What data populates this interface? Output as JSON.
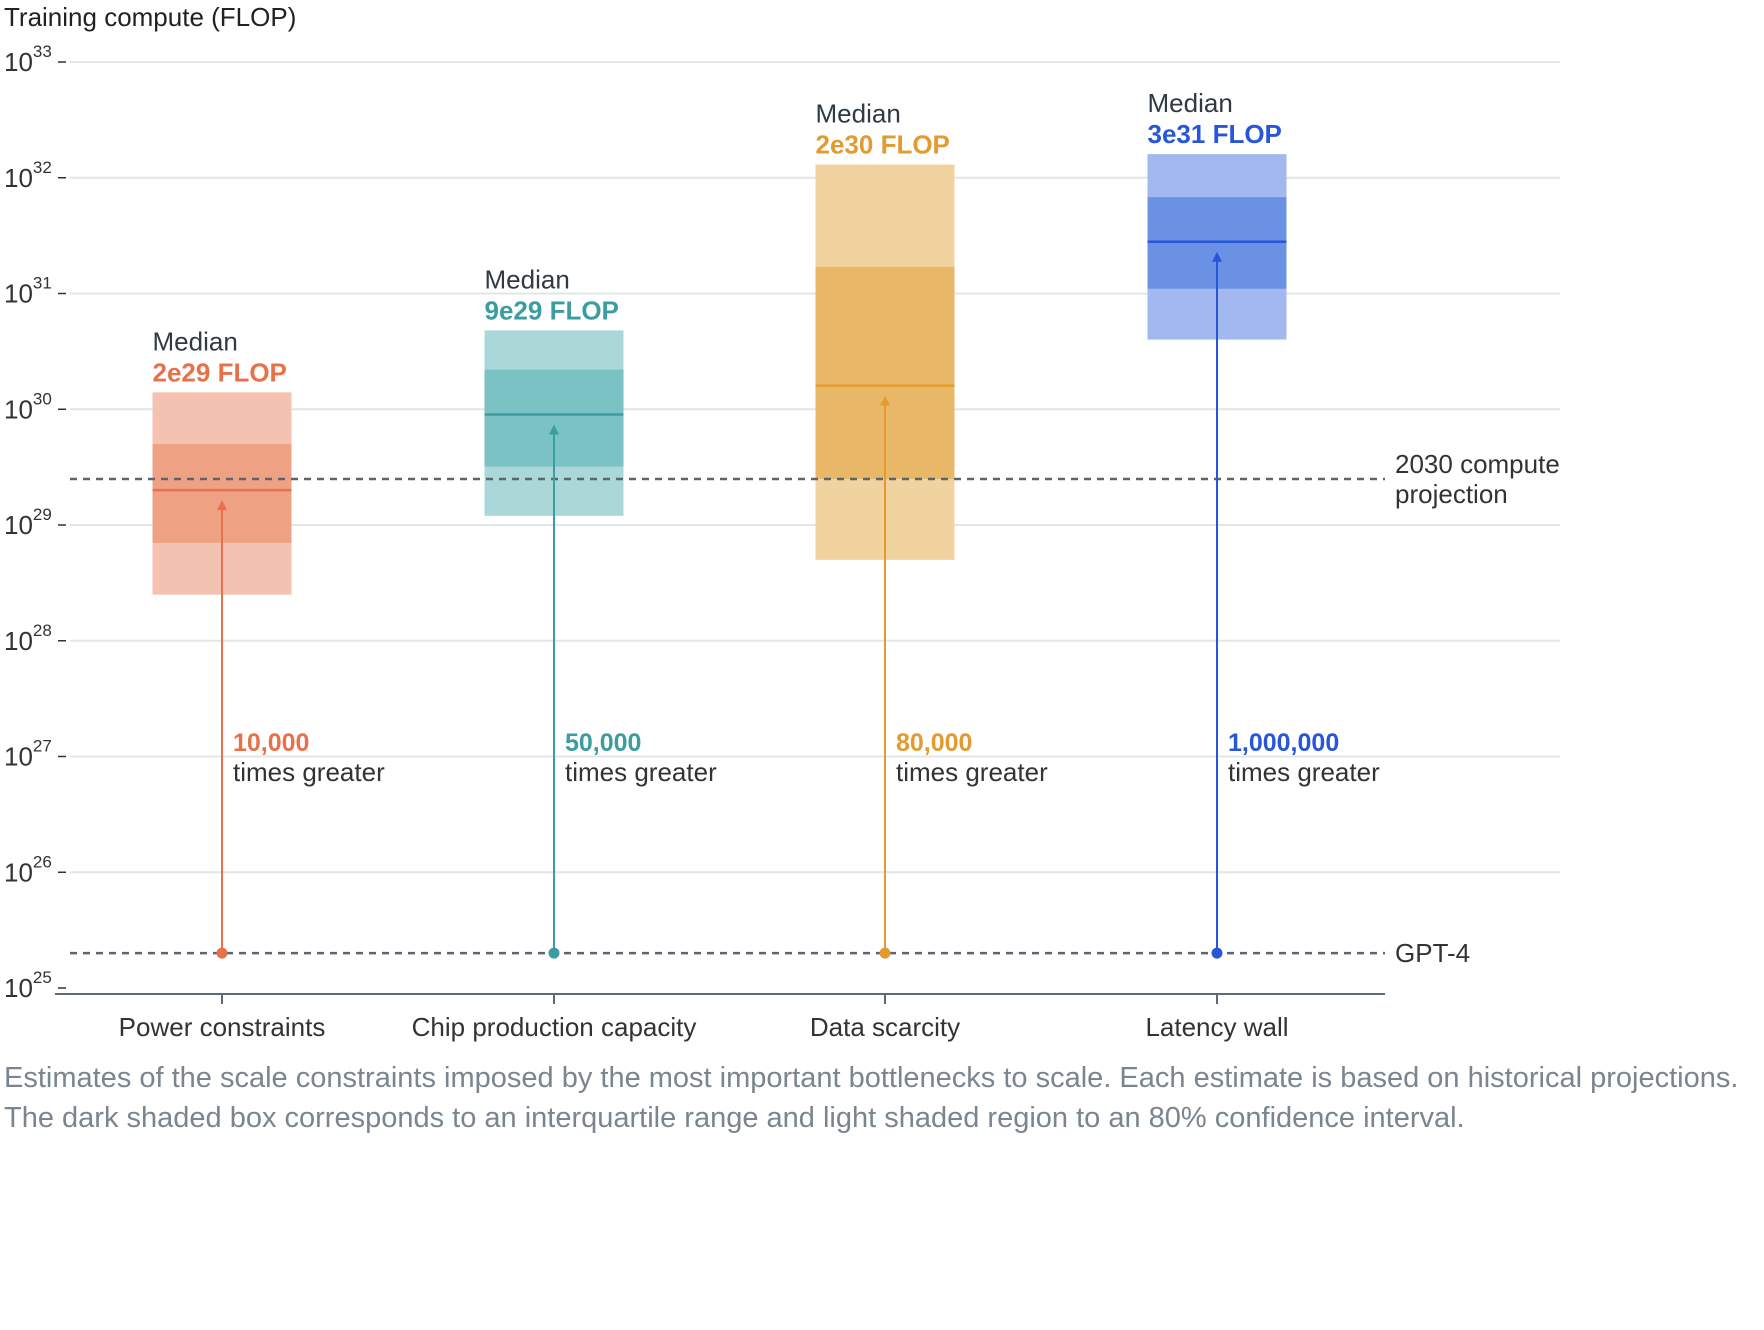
{
  "chart_data": {
    "type": "box",
    "ylabel": "Training compute (FLOP)",
    "yscale": "log",
    "ylim": [
      1e+25,
      1e+33
    ],
    "yticks": [
      {
        "base": "10",
        "exp": "33"
      },
      {
        "base": "10",
        "exp": "32"
      },
      {
        "base": "10",
        "exp": "31"
      },
      {
        "base": "10",
        "exp": "30"
      },
      {
        "base": "10",
        "exp": "29"
      },
      {
        "base": "10",
        "exp": "28"
      },
      {
        "base": "10",
        "exp": "27"
      },
      {
        "base": "10",
        "exp": "26"
      },
      {
        "base": "10",
        "exp": "25"
      }
    ],
    "grid": true,
    "categories": [
      "Power constraints",
      "Chip production capacity",
      "Data scarcity",
      "Latency wall"
    ],
    "series": [
      {
        "category": "Power constraints",
        "color": "#e8714a",
        "light_color": "#f4c2b1",
        "dark_color": "#efa184",
        "median": 2e+29,
        "iqr": [
          7e+28,
          5e+29
        ],
        "ci80": [
          2.5e+28,
          1.4e+30
        ],
        "median_label": "Median",
        "median_value_label": "2e29 FLOP",
        "multiplier_value": "10,000",
        "multiplier_text": "times greater"
      },
      {
        "category": "Chip production capacity",
        "color": "#3c9da0",
        "light_color": "#aad8d9",
        "dark_color": "#7ac2c3",
        "median": 9e+29,
        "iqr": [
          3.2e+29,
          2.2e+30
        ],
        "ci80": [
          1.2e+29,
          4.8e+30
        ],
        "median_label": "Median",
        "median_value_label": "9e29 FLOP",
        "multiplier_value": "50,000",
        "multiplier_text": "times greater"
      },
      {
        "category": "Data scarcity",
        "color": "#e39a2e",
        "light_color": "#f1d3a0",
        "dark_color": "#e8b868",
        "median": 1.6e+30,
        "iqr": [
          2.5e+29,
          1.7e+31
        ],
        "ci80": [
          5e+28,
          1.3e+32
        ],
        "median_label": "Median",
        "median_value_label": "2e30 FLOP",
        "multiplier_value": "80,000",
        "multiplier_text": "times greater"
      },
      {
        "category": "Latency wall",
        "color": "#2757d8",
        "light_color": "#a2b8ee",
        "dark_color": "#6a91e4",
        "median": 2.8e+31,
        "iqr": [
          1.1e+31,
          6.8e+31
        ],
        "ci80": [
          4e+30,
          1.6e+32
        ],
        "median_label": "Median",
        "median_value_label": "3e31 FLOP",
        "multiplier_value": "1,000,000",
        "multiplier_text": "times greater"
      }
    ],
    "reference_lines": [
      {
        "label_lines": [
          "2030 compute",
          "projection"
        ],
        "value": 2.5e+29,
        "style": "dashed"
      },
      {
        "label_lines": [
          "GPT-4"
        ],
        "value": 2e+25,
        "style": "dashed"
      }
    ],
    "colors": {
      "grid": "#dfe7e8",
      "axis": "#5a6a78",
      "reference": "#5a6570"
    }
  },
  "caption": "Estimates of the scale constraints imposed by the most important bottlenecks to scale. Each estimate is based on historical projections. The dark shaded box corresponds to an interquartile range and light shaded region to an 80% confidence interval."
}
